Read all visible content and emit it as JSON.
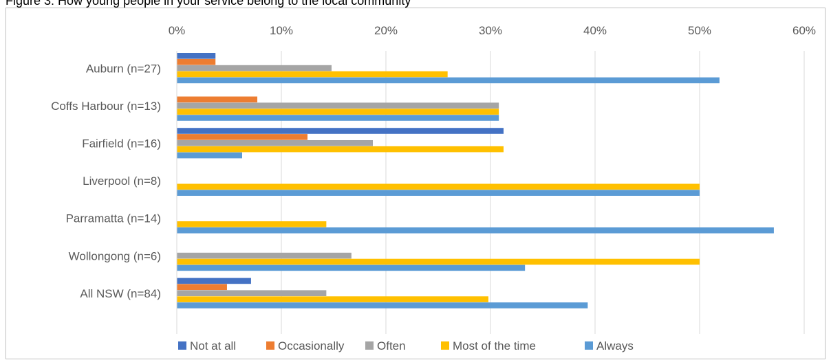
{
  "caption": "Figure 3: How young people in your service belong to the local community",
  "chart_data": {
    "type": "bar",
    "orientation": "horizontal",
    "title": "",
    "xlabel": "",
    "ylabel": "",
    "xlim": [
      0,
      0.6
    ],
    "x_tick_values": [
      0,
      0.1,
      0.2,
      0.3,
      0.4,
      0.5,
      0.6
    ],
    "x_tick_labels": [
      "0%",
      "10%",
      "20%",
      "30%",
      "40%",
      "50%",
      "60%"
    ],
    "grid": true,
    "legend_position": "bottom",
    "categories": [
      "Auburn (n=27)",
      "Coffs Harbour (n=13)",
      "Fairfield (n=16)",
      "Liverpool (n=8)",
      "Parramatta (n=14)",
      "Wollongong (n=6)",
      "All NSW (n=84)"
    ],
    "series": [
      {
        "name": "Not at all",
        "color": "#4472C4",
        "values": [
          0.037,
          0,
          0.3125,
          0,
          0,
          0,
          0.071
        ]
      },
      {
        "name": "Occasionally",
        "color": "#ED7D31",
        "values": [
          0.037,
          0.077,
          0.125,
          0,
          0,
          0,
          0.048
        ]
      },
      {
        "name": "Often",
        "color": "#A5A5A5",
        "values": [
          0.148,
          0.308,
          0.1875,
          0,
          0,
          0.167,
          0.143
        ]
      },
      {
        "name": "Most of the time",
        "color": "#FFC000",
        "values": [
          0.259,
          0.308,
          0.3125,
          0.5,
          0.143,
          0.5,
          0.298
        ]
      },
      {
        "name": "Always",
        "color": "#5B9BD5",
        "values": [
          0.519,
          0.308,
          0.0625,
          0.5,
          0.571,
          0.333,
          0.393
        ]
      }
    ]
  }
}
